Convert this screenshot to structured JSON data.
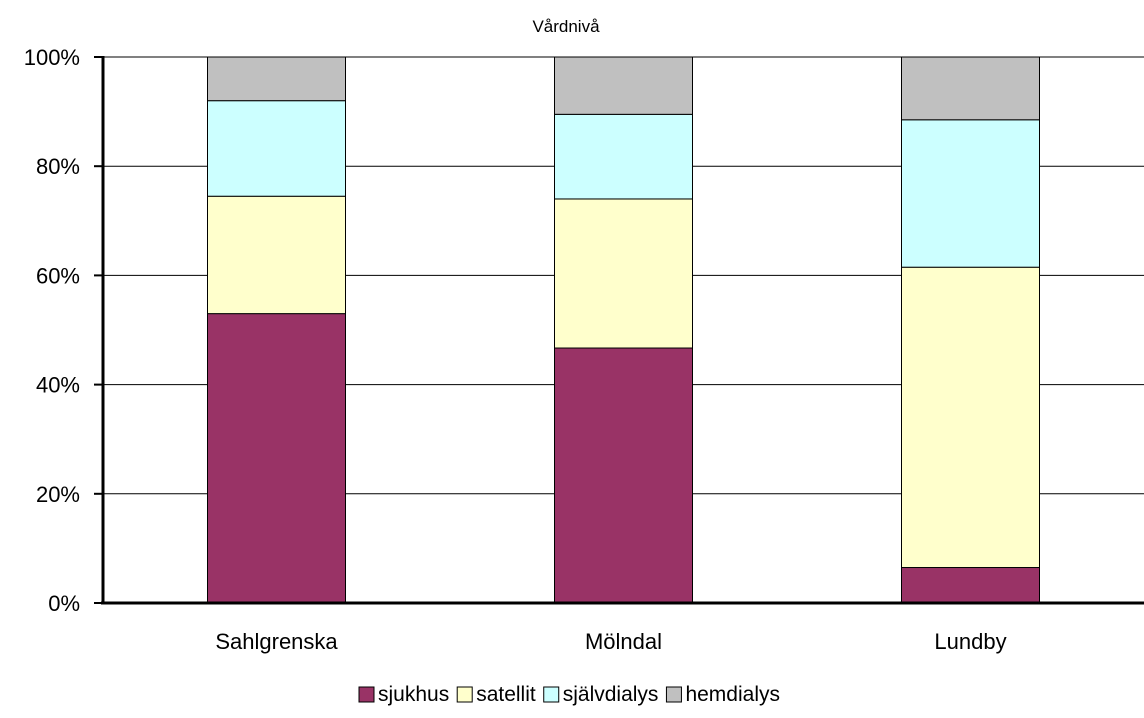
{
  "chart_data": {
    "type": "bar",
    "stacked": true,
    "percent_stacked": true,
    "title": "Vårdnivå",
    "xlabel": "",
    "ylabel": "",
    "ylim": [
      0,
      100
    ],
    "yticks": [
      "0%",
      "20%",
      "40%",
      "60%",
      "80%",
      "100%"
    ],
    "categories": [
      "Sahlgrenska",
      "Mölndal",
      "Lundby"
    ],
    "series": [
      {
        "name": "sjukhus",
        "color": "#993366",
        "values": [
          53,
          46.7,
          6.5
        ]
      },
      {
        "name": "satellit",
        "color": "#FFFFCC",
        "values": [
          21.5,
          27.3,
          55
        ]
      },
      {
        "name": "självdialys",
        "color": "#CCFFFF",
        "values": [
          17.5,
          15.5,
          27
        ]
      },
      {
        "name": "hemdialys",
        "color": "#C0C0C0",
        "values": [
          8,
          10.5,
          11.5
        ]
      }
    ],
    "grid": true,
    "legend_position": "bottom"
  }
}
